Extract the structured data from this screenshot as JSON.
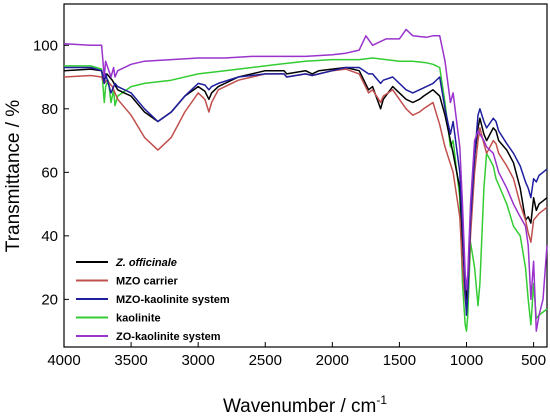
{
  "chart_data": {
    "type": "line",
    "xlabel": "Wavenumber / cm",
    "xlabel_sup": "-1",
    "ylabel": "Transmittance / %",
    "xlim": [
      4000,
      400
    ],
    "ylim": [
      5,
      113
    ],
    "x_reversed": true,
    "x_ticks": [
      4000,
      3500,
      3000,
      2500,
      2000,
      1500,
      1000,
      500
    ],
    "x_tick_labels": [
      "4000",
      "3500",
      "3000",
      "2500",
      "2000",
      "1500",
      "1000",
      "500"
    ],
    "y_ticks": [
      20,
      40,
      60,
      80,
      100
    ],
    "y_tick_labels": [
      "20",
      "40",
      "60",
      "80",
      "100"
    ],
    "grid": false,
    "legend_position": "bottom-left",
    "series": [
      {
        "name": "Z. officinale",
        "italic": true,
        "color": "#000000",
        "points": [
          [
            4000,
            92
          ],
          [
            3800,
            92.5
          ],
          [
            3720,
            92
          ],
          [
            3700,
            89
          ],
          [
            3680,
            91
          ],
          [
            3640,
            89
          ],
          [
            3600,
            86
          ],
          [
            3500,
            84
          ],
          [
            3400,
            79
          ],
          [
            3300,
            76
          ],
          [
            3200,
            79
          ],
          [
            3100,
            84
          ],
          [
            3000,
            87
          ],
          [
            2950,
            85.5
          ],
          [
            2920,
            83
          ],
          [
            2900,
            85
          ],
          [
            2850,
            87
          ],
          [
            2700,
            90
          ],
          [
            2500,
            92
          ],
          [
            2360,
            92
          ],
          [
            2340,
            91
          ],
          [
            2200,
            92
          ],
          [
            2150,
            91
          ],
          [
            2100,
            92
          ],
          [
            2000,
            92.5
          ],
          [
            1900,
            93
          ],
          [
            1800,
            92
          ],
          [
            1730,
            86
          ],
          [
            1700,
            87
          ],
          [
            1640,
            80
          ],
          [
            1620,
            83
          ],
          [
            1550,
            87
          ],
          [
            1450,
            83
          ],
          [
            1400,
            82
          ],
          [
            1350,
            83
          ],
          [
            1320,
            84
          ],
          [
            1250,
            86
          ],
          [
            1200,
            84
          ],
          [
            1160,
            78
          ],
          [
            1100,
            66
          ],
          [
            1050,
            55
          ],
          [
            1030,
            38
          ],
          [
            1010,
            24
          ],
          [
            1000,
            20
          ],
          [
            990,
            25
          ],
          [
            970,
            45
          ],
          [
            940,
            65
          ],
          [
            914,
            74
          ],
          [
            900,
            77
          ],
          [
            870,
            72
          ],
          [
            850,
            70
          ],
          [
            800,
            74
          ],
          [
            780,
            73
          ],
          [
            760,
            70
          ],
          [
            700,
            67
          ],
          [
            650,
            63
          ],
          [
            600,
            55
          ],
          [
            560,
            45
          ],
          [
            540,
            46
          ],
          [
            520,
            44
          ],
          [
            500,
            52
          ],
          [
            480,
            48
          ],
          [
            460,
            50
          ],
          [
            430,
            51
          ],
          [
            400,
            52
          ]
        ]
      },
      {
        "name": "MZO carrier",
        "color": "#c0504d",
        "points": [
          [
            4000,
            90
          ],
          [
            3800,
            90.5
          ],
          [
            3720,
            90
          ],
          [
            3700,
            88
          ],
          [
            3680,
            89
          ],
          [
            3640,
            87
          ],
          [
            3600,
            83
          ],
          [
            3500,
            78
          ],
          [
            3400,
            71
          ],
          [
            3300,
            67
          ],
          [
            3200,
            71
          ],
          [
            3100,
            79
          ],
          [
            3000,
            85
          ],
          [
            2950,
            83
          ],
          [
            2920,
            79
          ],
          [
            2900,
            82
          ],
          [
            2850,
            86
          ],
          [
            2700,
            89
          ],
          [
            2500,
            91
          ],
          [
            2360,
            91
          ],
          [
            2340,
            90
          ],
          [
            2200,
            91
          ],
          [
            2150,
            90.5
          ],
          [
            2100,
            91
          ],
          [
            2000,
            92
          ],
          [
            1900,
            92.5
          ],
          [
            1800,
            91
          ],
          [
            1730,
            85
          ],
          [
            1700,
            86
          ],
          [
            1640,
            82
          ],
          [
            1620,
            84
          ],
          [
            1550,
            86
          ],
          [
            1450,
            80
          ],
          [
            1400,
            78
          ],
          [
            1350,
            79
          ],
          [
            1320,
            80
          ],
          [
            1250,
            82
          ],
          [
            1200,
            75
          ],
          [
            1160,
            68
          ],
          [
            1100,
            60
          ],
          [
            1050,
            46
          ],
          [
            1030,
            30
          ],
          [
            1010,
            20
          ],
          [
            1000,
            17
          ],
          [
            990,
            21
          ],
          [
            970,
            40
          ],
          [
            940,
            60
          ],
          [
            914,
            70
          ],
          [
            900,
            74
          ],
          [
            870,
            69
          ],
          [
            850,
            66
          ],
          [
            800,
            70
          ],
          [
            780,
            69
          ],
          [
            760,
            66
          ],
          [
            700,
            62
          ],
          [
            650,
            58
          ],
          [
            600,
            50
          ],
          [
            560,
            45
          ],
          [
            540,
            41
          ],
          [
            520,
            38
          ],
          [
            500,
            45
          ],
          [
            480,
            46
          ],
          [
            460,
            47
          ],
          [
            430,
            48
          ],
          [
            400,
            49
          ]
        ]
      },
      {
        "name": "MZO-kaolinite system",
        "color": "#1f1f9e",
        "points": [
          [
            4000,
            93
          ],
          [
            3800,
            93
          ],
          [
            3720,
            92
          ],
          [
            3700,
            88
          ],
          [
            3690,
            91
          ],
          [
            3650,
            85
          ],
          [
            3620,
            88
          ],
          [
            3600,
            87
          ],
          [
            3500,
            85
          ],
          [
            3400,
            80
          ],
          [
            3300,
            76
          ],
          [
            3200,
            79
          ],
          [
            3100,
            84
          ],
          [
            3000,
            88
          ],
          [
            2950,
            87.5
          ],
          [
            2920,
            86
          ],
          [
            2900,
            87
          ],
          [
            2850,
            88
          ],
          [
            2700,
            90
          ],
          [
            2500,
            91
          ],
          [
            2360,
            91
          ],
          [
            2340,
            90
          ],
          [
            2200,
            91
          ],
          [
            2150,
            90.5
          ],
          [
            2100,
            91
          ],
          [
            2000,
            92
          ],
          [
            1900,
            93
          ],
          [
            1800,
            93
          ],
          [
            1730,
            91
          ],
          [
            1700,
            91
          ],
          [
            1640,
            88
          ],
          [
            1620,
            89
          ],
          [
            1550,
            90
          ],
          [
            1450,
            86
          ],
          [
            1400,
            85
          ],
          [
            1350,
            86
          ],
          [
            1250,
            88
          ],
          [
            1200,
            90
          ],
          [
            1160,
            80
          ],
          [
            1120,
            72
          ],
          [
            1100,
            76
          ],
          [
            1050,
            60
          ],
          [
            1030,
            42
          ],
          [
            1010,
            22
          ],
          [
            1000,
            15
          ],
          [
            990,
            22
          ],
          [
            970,
            45
          ],
          [
            940,
            65
          ],
          [
            914,
            78
          ],
          [
            900,
            80
          ],
          [
            870,
            76
          ],
          [
            850,
            74
          ],
          [
            800,
            77
          ],
          [
            780,
            76
          ],
          [
            760,
            73
          ],
          [
            700,
            69
          ],
          [
            650,
            66
          ],
          [
            600,
            62
          ],
          [
            560,
            57
          ],
          [
            540,
            55
          ],
          [
            520,
            52
          ],
          [
            500,
            58
          ],
          [
            480,
            57
          ],
          [
            460,
            59
          ],
          [
            430,
            60
          ],
          [
            400,
            61
          ]
        ]
      },
      {
        "name": "kaolinite",
        "color": "#33cc33",
        "points": [
          [
            4000,
            93.5
          ],
          [
            3800,
            93.5
          ],
          [
            3720,
            92.5
          ],
          [
            3700,
            82
          ],
          [
            3690,
            87
          ],
          [
            3670,
            89
          ],
          [
            3650,
            82
          ],
          [
            3630,
            86
          ],
          [
            3620,
            81
          ],
          [
            3600,
            84
          ],
          [
            3500,
            87
          ],
          [
            3400,
            88
          ],
          [
            3200,
            89
          ],
          [
            3000,
            91
          ],
          [
            2800,
            92
          ],
          [
            2600,
            93
          ],
          [
            2400,
            94
          ],
          [
            2200,
            95
          ],
          [
            2000,
            95.5
          ],
          [
            1900,
            95.5
          ],
          [
            1800,
            95.5
          ],
          [
            1700,
            96
          ],
          [
            1600,
            95.5
          ],
          [
            1500,
            95
          ],
          [
            1400,
            95
          ],
          [
            1300,
            94.5
          ],
          [
            1250,
            94
          ],
          [
            1200,
            93
          ],
          [
            1160,
            82
          ],
          [
            1120,
            68
          ],
          [
            1100,
            70
          ],
          [
            1050,
            52
          ],
          [
            1030,
            25
          ],
          [
            1010,
            12
          ],
          [
            1000,
            10
          ],
          [
            990,
            15
          ],
          [
            970,
            38
          ],
          [
            940,
            30
          ],
          [
            914,
            18
          ],
          [
            900,
            25
          ],
          [
            870,
            55
          ],
          [
            850,
            66
          ],
          [
            800,
            62
          ],
          [
            780,
            58
          ],
          [
            760,
            56
          ],
          [
            700,
            50
          ],
          [
            650,
            43
          ],
          [
            600,
            40
          ],
          [
            560,
            30
          ],
          [
            540,
            20
          ],
          [
            520,
            12
          ],
          [
            500,
            25
          ],
          [
            480,
            14
          ],
          [
            460,
            15
          ],
          [
            430,
            16
          ],
          [
            400,
            17
          ]
        ]
      },
      {
        "name": "ZO-kaolinite system",
        "color": "#9933cc",
        "points": [
          [
            4000,
            100.5
          ],
          [
            3800,
            100
          ],
          [
            3720,
            100
          ],
          [
            3700,
            90
          ],
          [
            3690,
            95
          ],
          [
            3650,
            90
          ],
          [
            3630,
            93
          ],
          [
            3620,
            90
          ],
          [
            3600,
            92
          ],
          [
            3500,
            94
          ],
          [
            3400,
            95
          ],
          [
            3200,
            95.5
          ],
          [
            3000,
            96
          ],
          [
            2800,
            96
          ],
          [
            2600,
            96.5
          ],
          [
            2400,
            96.5
          ],
          [
            2200,
            96.5
          ],
          [
            2000,
            97
          ],
          [
            1900,
            97.5
          ],
          [
            1800,
            98.5
          ],
          [
            1750,
            103
          ],
          [
            1700,
            100
          ],
          [
            1650,
            101
          ],
          [
            1600,
            102
          ],
          [
            1500,
            102
          ],
          [
            1450,
            105
          ],
          [
            1400,
            103
          ],
          [
            1300,
            102.5
          ],
          [
            1250,
            103
          ],
          [
            1200,
            103
          ],
          [
            1180,
            99
          ],
          [
            1160,
            95
          ],
          [
            1120,
            82
          ],
          [
            1100,
            85
          ],
          [
            1050,
            68
          ],
          [
            1030,
            50
          ],
          [
            1010,
            28
          ],
          [
            1000,
            23
          ],
          [
            990,
            28
          ],
          [
            970,
            50
          ],
          [
            940,
            70
          ],
          [
            914,
            73
          ],
          [
            900,
            72
          ],
          [
            870,
            70
          ],
          [
            850,
            68
          ],
          [
            800,
            66
          ],
          [
            780,
            63
          ],
          [
            760,
            60
          ],
          [
            700,
            55
          ],
          [
            650,
            50
          ],
          [
            600,
            46
          ],
          [
            560,
            43
          ],
          [
            540,
            37
          ],
          [
            520,
            20
          ],
          [
            500,
            32
          ],
          [
            480,
            10
          ],
          [
            460,
            15
          ],
          [
            430,
            20
          ],
          [
            400,
            37
          ]
        ]
      }
    ]
  }
}
